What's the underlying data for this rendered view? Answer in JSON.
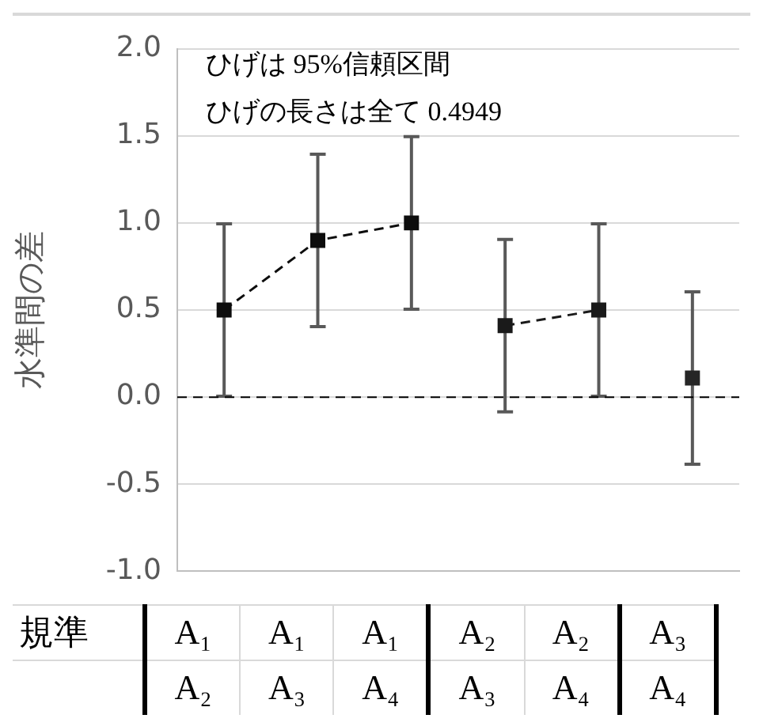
{
  "chart_data": {
    "type": "line",
    "ylabel": "水準間の差",
    "xlabel": "規準",
    "categories": [
      "A₁\nA₂",
      "A₁\nA₃",
      "A₁\nA₄",
      "A₂\nA₃",
      "A₂\nA₄",
      "A₃\nA₄"
    ],
    "series": [
      {
        "color": "#0d0d0d",
        "values": [
          0.5,
          0.9,
          1.0,
          null,
          null,
          null
        ],
        "errors": [
          0.4949,
          0.4949,
          0.4949,
          null,
          null,
          null
        ]
      },
      {
        "color": "#1a1a1a",
        "values": [
          null,
          null,
          null,
          0.41,
          0.5,
          null
        ],
        "errors": [
          null,
          null,
          null,
          0.4949,
          0.4949,
          null
        ]
      },
      {
        "color": "#262626",
        "values": [
          null,
          null,
          null,
          null,
          null,
          0.11
        ],
        "errors": [
          null,
          null,
          null,
          null,
          null,
          0.4949
        ]
      }
    ],
    "line_style": "dashed",
    "marker": "square",
    "ylim": [
      -1.0,
      2.0
    ],
    "yticks": [
      {
        "value": -1,
        "label": "-1.0"
      },
      {
        "value": -0.5,
        "label": "-0.5"
      },
      {
        "value": 0,
        "label": "0.0"
      },
      {
        "value": 0.5,
        "label": "0.5"
      },
      {
        "value": 1,
        "label": "1.0"
      },
      {
        "value": 1.5,
        "label": "1.5"
      },
      {
        "value": 2,
        "label": "2.0"
      }
    ],
    "grid": "y",
    "legend": false,
    "ref_lines": [
      {
        "axis": "y",
        "value": 0,
        "color": "#000000",
        "line_style": "dashed"
      }
    ],
    "annotations": [
      "ひげは 95%信頼区間",
      "ひげの長さは全て 0.4949"
    ]
  }
}
